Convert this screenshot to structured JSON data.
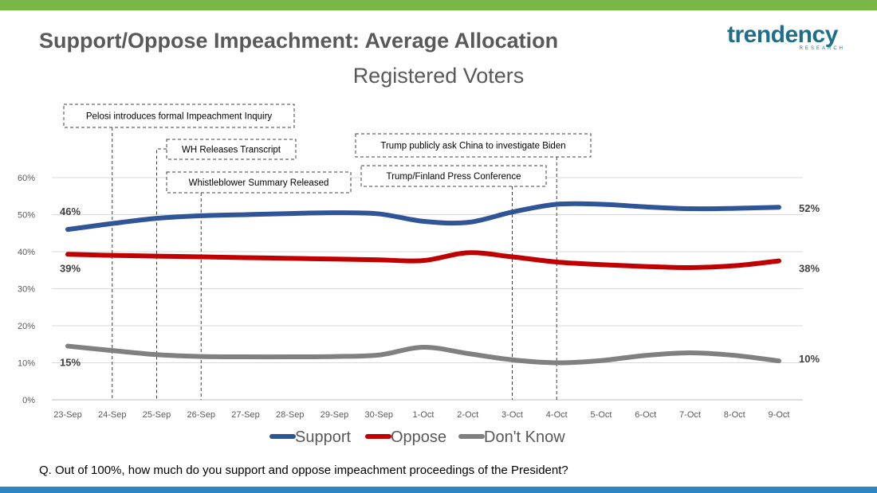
{
  "header": {
    "title": "Support/Oppose Impeachment: Average Allocation",
    "subtitle": "Registered Voters",
    "logo_text": "trendency",
    "logo_subtext": "RESEARCH"
  },
  "footer": {
    "question": "Q. Out of 100%, how much do you support and oppose impeachment proceedings of the President?"
  },
  "colors": {
    "support": "#2f5597",
    "oppose": "#c00000",
    "dont_know": "#808080",
    "top_bar": "#7ab648",
    "bottom_bar": "#2e86c1"
  },
  "chart_data": {
    "type": "line",
    "title": "",
    "xlabel": "",
    "ylabel": "",
    "categories": [
      "23-Sep",
      "24-Sep",
      "25-Sep",
      "26-Sep",
      "27-Sep",
      "28-Sep",
      "29-Sep",
      "30-Sep",
      "1-Oct",
      "2-Oct",
      "3-Oct",
      "4-Oct",
      "5-Oct",
      "6-Oct",
      "7-Oct",
      "8-Oct",
      "9-Oct"
    ],
    "ylim": [
      0,
      60
    ],
    "yticks": [
      "0%",
      "10%",
      "20%",
      "30%",
      "40%",
      "50%",
      "60%"
    ],
    "grid": true,
    "legend_position": "bottom",
    "series": [
      {
        "name": "Support",
        "color": "#2f5597",
        "values": [
          46,
          47.6,
          49,
          49.7,
          50,
          50.3,
          50.5,
          50.2,
          48.2,
          47.9,
          50.7,
          52.8,
          52.8,
          52.1,
          51.6,
          51.7,
          52
        ],
        "start_label": "46%",
        "end_label": "52%"
      },
      {
        "name": "Oppose",
        "color": "#c00000",
        "values": [
          39.3,
          39,
          38.8,
          38.6,
          38.4,
          38.2,
          38,
          37.8,
          37.6,
          39.7,
          38.6,
          37.2,
          36.5,
          36,
          35.7,
          36.2,
          37.5
        ],
        "start_label": "39%",
        "end_label": "38%"
      },
      {
        "name": "Don't Know",
        "color": "#808080",
        "values": [
          14.5,
          13.3,
          12.2,
          11.7,
          11.6,
          11.6,
          11.7,
          12.1,
          14.2,
          12.5,
          10.8,
          10,
          10.6,
          12,
          12.7,
          12,
          10.5
        ],
        "start_label": "15%",
        "end_label": "10%"
      }
    ],
    "annotations": [
      {
        "text": "Pelosi introduces formal Impeachment Inquiry",
        "date": "24-Sep"
      },
      {
        "text": "WH Releases Transcript",
        "date": "25-Sep"
      },
      {
        "text": "Whistleblower Summary  Released",
        "date": "26-Sep"
      },
      {
        "text": "Trump/Finland Press Conference",
        "date": "3-Oct"
      },
      {
        "text": "Trump publicly ask China to investigate Biden",
        "date": "4-Oct"
      }
    ]
  }
}
